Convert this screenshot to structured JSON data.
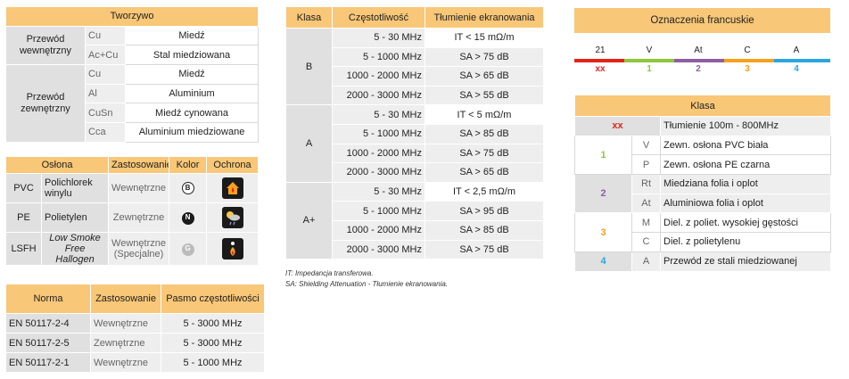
{
  "tworzywo": {
    "title": "Tworzywo",
    "groups": [
      {
        "label": "Przewód wewnętrzny",
        "rows": [
          [
            "Cu",
            "Miedź"
          ],
          [
            "Ac+Cu",
            "Stal miedziowana"
          ]
        ]
      },
      {
        "label": "Przewód zewnętrzny",
        "rows": [
          [
            "Cu",
            "Miedź"
          ],
          [
            "Al",
            "Aluminium"
          ],
          [
            "CuSn",
            "Miedź cynowana"
          ],
          [
            "Cca",
            "Aluminium miedziowane"
          ]
        ]
      }
    ]
  },
  "oslona": {
    "headers": [
      "Osłona",
      "Zastosowanie",
      "Kolor",
      "Ochrona"
    ],
    "rows": [
      {
        "code": "PVC",
        "name": "Polichlorek winylu",
        "use": "Wewnętrzne",
        "color": "B",
        "color_bg": "#ffffff",
        "color_fg": "#222222",
        "icon": "house-fire-icon"
      },
      {
        "code": "PE",
        "name": "Polietylen",
        "use": "Zewnętrzne",
        "color": "N",
        "color_bg": "#1a1a1a",
        "color_fg": "#ffffff",
        "icon": "weather-icon"
      },
      {
        "code": "LSFH",
        "name": "Low Smoke Free Hallogen",
        "use": "Wewnętrzne (Specjalne)",
        "color": "G",
        "color_bg": "#bbbbbb",
        "color_fg": "#ffffff",
        "icon": "person-fire-icon"
      }
    ]
  },
  "norma": {
    "headers": [
      "Norma",
      "Zastosowanie",
      "Pasmo częstotliwości"
    ],
    "rows": [
      [
        "EN 50117-2-4",
        "Wewnętrzne",
        "5 - 3000 MHz"
      ],
      [
        "EN 50117-2-5",
        "Zewnętrzne",
        "5 - 3000 MHz"
      ],
      [
        "EN 50117-2-1",
        "Wewnętrzne",
        "5 - 1000 MHz"
      ]
    ]
  },
  "klasa": {
    "headers": [
      "Klasa",
      "Częstotliwość",
      "Tłumienie ekranowania"
    ],
    "groups": [
      {
        "label": "B",
        "rows": [
          [
            "5 - 30 MHz",
            "IT < 15 mΩ/m"
          ],
          [
            "5 - 1000 MHz",
            "SA > 75 dB"
          ],
          [
            "1000 - 2000 MHz",
            "SA > 65 dB"
          ],
          [
            "2000 - 3000 MHz",
            "SA > 55 dB"
          ]
        ]
      },
      {
        "label": "A",
        "rows": [
          [
            "5 - 30 MHz",
            "IT < 5 mΩ/m"
          ],
          [
            "5 - 1000 MHz",
            "SA > 85 dB"
          ],
          [
            "1000 - 2000 MHz",
            "SA > 75 dB"
          ],
          [
            "2000 - 3000 MHz",
            "SA > 65 dB"
          ]
        ]
      },
      {
        "label": "A+",
        "rows": [
          [
            "5 - 30 MHz",
            "IT < 2,5 mΩ/m"
          ],
          [
            "5 - 1000 MHz",
            "SA > 95 dB"
          ],
          [
            "1000 - 2000 MHz",
            "SA > 85 dB"
          ],
          [
            "2000 - 3000 MHz",
            "SA > 75 dB"
          ]
        ]
      }
    ],
    "footnotes": [
      "IT: Impedancja transferowa.",
      "SA: Shielding Attenuation - Tłumienie ekranowania."
    ]
  },
  "francuskie": {
    "title": "Oznaczenia francuskie",
    "segments": [
      {
        "label": "21",
        "code": "xx",
        "color": "#e2231a"
      },
      {
        "label": "V",
        "code": "1",
        "color": "#8dc63f"
      },
      {
        "label": "At",
        "code": "2",
        "color": "#8e5ea2"
      },
      {
        "label": "C",
        "code": "3",
        "color": "#f7a01d"
      },
      {
        "label": "A",
        "code": "4",
        "color": "#2aa6de"
      }
    ]
  },
  "klasa2": {
    "title": "Klasa",
    "rows": [
      {
        "num": "xx",
        "num_color": "#e2231a",
        "items": [
          [
            "",
            "Tłumienie 100m - 800MHz"
          ]
        ]
      },
      {
        "num": "1",
        "num_color": "#8dc63f",
        "items": [
          [
            "V",
            "Zewn. osłona PVC biała"
          ],
          [
            "P",
            "Zewn. osłona PE czarna"
          ]
        ]
      },
      {
        "num": "2",
        "num_color": "#8e5ea2",
        "items": [
          [
            "Rt",
            "Miedziana folia i oplot"
          ],
          [
            "At",
            "Aluminiowa folia i oplot"
          ]
        ]
      },
      {
        "num": "3",
        "num_color": "#f7a01d",
        "items": [
          [
            "M",
            "Diel. z poliet. wysokiej gęstości"
          ],
          [
            "C",
            "Diel. z polietylenu"
          ]
        ]
      },
      {
        "num": "4",
        "num_color": "#2aa6de",
        "items": [
          [
            "A",
            "Przewód ze stali miedziowanej"
          ]
        ]
      }
    ]
  }
}
